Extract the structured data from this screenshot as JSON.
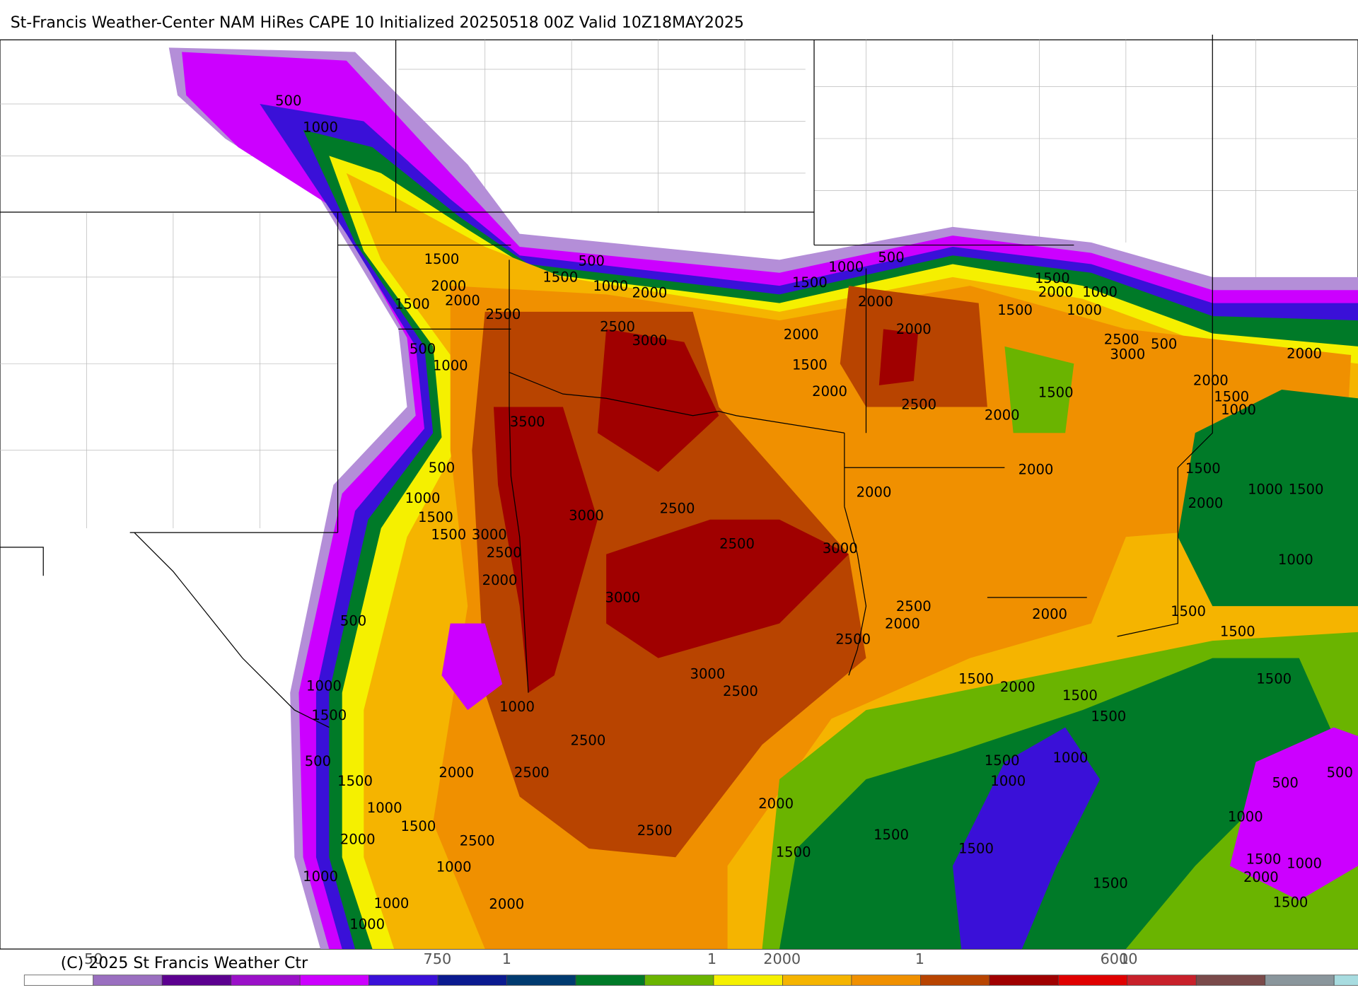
{
  "title": "St-Francis Weather-Center NAM HiRes CAPE  10 Initialized 20250518 00Z Valid 10Z18MAY2025",
  "contour_labels": [
    "500",
    "1000",
    "1500",
    "2000",
    "2000",
    "1500",
    "2500",
    "500",
    "1500",
    "1000",
    "2000",
    "2500",
    "3000",
    "500",
    "1000",
    "3500",
    "500",
    "1000",
    "1500",
    "1500",
    "3000",
    "2500",
    "2000",
    "3000",
    "2500",
    "2500",
    "3000",
    "3000",
    "500",
    "1000",
    "1500",
    "1000",
    "3000",
    "2500",
    "2500",
    "2000",
    "2500",
    "500",
    "1500",
    "1000",
    "1500",
    "2000",
    "2500",
    "1000",
    "1000",
    "1000",
    "2000",
    "1000",
    "2500",
    "2000",
    "1500",
    "1000",
    "500",
    "1500",
    "2000",
    "2000",
    "2000",
    "1500",
    "2000",
    "2500",
    "2000",
    "1500",
    "2000",
    "1000",
    "1000",
    "1500",
    "2500",
    "3000",
    "500",
    "1500",
    "2000",
    "2000",
    "1500",
    "1000",
    "2000",
    "2000",
    "1500",
    "2000",
    "1000",
    "1500",
    "1000",
    "2500",
    "2000",
    "2500",
    "2000",
    "1500",
    "1500",
    "1500",
    "1500",
    "2000",
    "1500",
    "1500",
    "1500",
    "1000",
    "1000",
    "500",
    "500",
    "1000",
    "1500",
    "1500",
    "1500",
    "1000",
    "2000",
    "1500",
    "1500"
  ],
  "colorbar_labels": [
    "50",
    "750",
    "1",
    "1",
    "2000",
    "1",
    "6000",
    "1"
  ],
  "copyright": "(C) 2025 St Francis Weather Ctr"
}
